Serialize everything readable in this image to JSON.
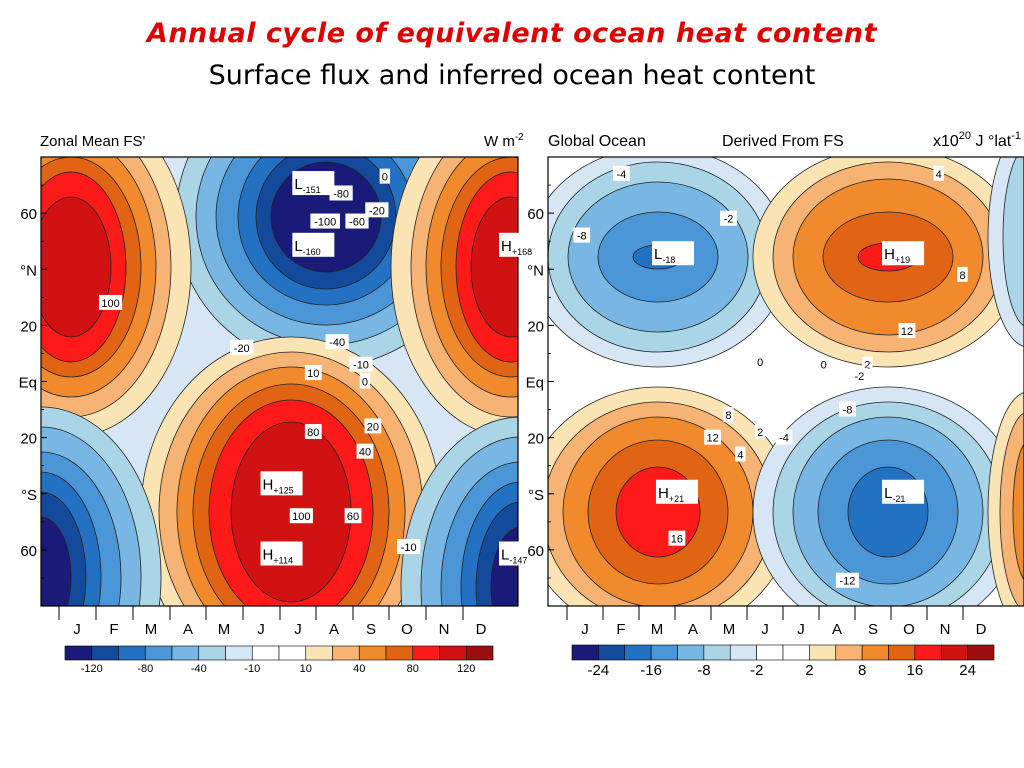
{
  "title": "Annual cycle of equivalent ocean heat content",
  "subtitle": "Surface flux and inferred ocean heat content",
  "chart_data": [
    {
      "type": "heatmap",
      "header_left": "Zonal Mean FS'",
      "header_right": "W m",
      "header_right_sup": "-2",
      "x_ticks": [
        "J",
        "F",
        "M",
        "A",
        "M",
        "J",
        "J",
        "A",
        "S",
        "O",
        "N",
        "D"
      ],
      "y_ticks": [
        "60",
        "°N",
        "20",
        "Eq",
        "20",
        "°S",
        "60"
      ],
      "levels": [
        "-120",
        "-80",
        "-40",
        "-10",
        "10",
        "40",
        "80",
        "120"
      ],
      "colors": [
        "#1a1a78",
        "#144a9c",
        "#2371c3",
        "#4b96d6",
        "#78b6e4",
        "#a9d5e6",
        "#d7e6f5",
        "#ffffff",
        "#ffffff",
        "#fbe4b4",
        "#f6b373",
        "#f08a2c",
        "#e06414",
        "#ff1a1a",
        "#d21212",
        "#9e0e0e"
      ],
      "extrema": [
        {
          "letter": "L",
          "value": "-151",
          "month": 7.1,
          "lat": 70
        },
        {
          "letter": "L",
          "value": "-160",
          "month": 7.1,
          "lat": 48
        },
        {
          "letter": "H",
          "value": "+168",
          "month": 12.3,
          "lat": 48
        },
        {
          "letter": "H",
          "value": "+125",
          "month": 6.3,
          "lat": -37
        },
        {
          "letter": "H",
          "value": "+114",
          "month": 6.3,
          "lat": -62
        },
        {
          "letter": "L",
          "value": "-147",
          "month": 12.3,
          "lat": -62
        }
      ],
      "contour_labels": [
        {
          "text": "-80",
          "month": 8.0,
          "lat": 67
        },
        {
          "text": "0",
          "month": 9.1,
          "lat": 73
        },
        {
          "text": "-20",
          "month": 8.9,
          "lat": 61
        },
        {
          "text": "-100",
          "month": 7.6,
          "lat": 57
        },
        {
          "text": "-60",
          "month": 8.4,
          "lat": 57
        },
        {
          "text": "100",
          "month": 2.2,
          "lat": 28
        },
        {
          "text": "-40",
          "month": 7.9,
          "lat": 14
        },
        {
          "text": "-20",
          "month": 5.5,
          "lat": 12
        },
        {
          "text": "-10",
          "month": 8.5,
          "lat": 6
        },
        {
          "text": "10",
          "month": 7.3,
          "lat": 3
        },
        {
          "text": "0",
          "month": 8.6,
          "lat": 0
        },
        {
          "text": "20",
          "month": 8.8,
          "lat": -16
        },
        {
          "text": "80",
          "month": 7.3,
          "lat": -18
        },
        {
          "text": "40",
          "month": 8.6,
          "lat": -25
        },
        {
          "text": "100",
          "month": 7.0,
          "lat": -48
        },
        {
          "text": "60",
          "month": 8.3,
          "lat": -48
        },
        {
          "text": "-10",
          "month": 9.7,
          "lat": -59
        }
      ]
    },
    {
      "type": "heatmap",
      "header_left": "Global Ocean",
      "header_center": "Derived From FS",
      "header_right": "x10",
      "header_right_sup": "20",
      "header_right_tail": "J °lat",
      "header_right_sup2": "-1",
      "x_ticks": [
        "J",
        "F",
        "M",
        "A",
        "M",
        "J",
        "J",
        "A",
        "S",
        "O",
        "N",
        "D"
      ],
      "y_ticks": [
        "60",
        "°N",
        "20",
        "Eq",
        "20",
        "°S",
        "60"
      ],
      "levels": [
        "-24",
        "-16",
        "-8",
        "-2",
        "2",
        "8",
        "16",
        "24"
      ],
      "colors": [
        "#1a1a78",
        "#144a9c",
        "#2371c3",
        "#4b96d6",
        "#78b6e4",
        "#a9d5e6",
        "#d7e6f5",
        "#ffffff",
        "#ffffff",
        "#fbe4b4",
        "#f6b373",
        "#f08a2c",
        "#e06414",
        "#ff1a1a",
        "#d21212",
        "#9e0e0e"
      ],
      "extrema": [
        {
          "letter": "L",
          "value": "-18",
          "month": 3.4,
          "lat": 45
        },
        {
          "letter": "H",
          "value": "+19",
          "month": 9.2,
          "lat": 45
        },
        {
          "letter": "H",
          "value": "+21",
          "month": 3.5,
          "lat": -40
        },
        {
          "letter": "L",
          "value": "-21",
          "month": 9.2,
          "lat": -40
        }
      ],
      "contour_labels": [
        {
          "text": "-4",
          "month": 2.3,
          "lat": 74
        },
        {
          "text": "4",
          "month": 10.3,
          "lat": 74
        },
        {
          "text": "-8",
          "month": 1.3,
          "lat": 52
        },
        {
          "text": "-2",
          "month": 5.0,
          "lat": 58
        },
        {
          "text": "8",
          "month": 10.9,
          "lat": 38
        },
        {
          "text": "12",
          "month": 9.5,
          "lat": 18
        },
        {
          "text": "0",
          "month": 5.8,
          "lat": 7
        },
        {
          "text": "0",
          "month": 7.4,
          "lat": 6
        },
        {
          "text": "2",
          "month": 8.5,
          "lat": 6
        },
        {
          "text": "-2",
          "month": 8.3,
          "lat": 2
        },
        {
          "text": "-8",
          "month": 8.0,
          "lat": -10
        },
        {
          "text": "8",
          "month": 5.0,
          "lat": -12
        },
        {
          "text": "12",
          "month": 4.6,
          "lat": -20
        },
        {
          "text": "2",
          "month": 5.8,
          "lat": -18
        },
        {
          "text": "-4",
          "month": 6.4,
          "lat": -20
        },
        {
          "text": "4",
          "month": 5.3,
          "lat": -26
        },
        {
          "text": "16",
          "month": 3.7,
          "lat": -56
        },
        {
          "text": "-12",
          "month": 8.0,
          "lat": -71
        }
      ]
    }
  ]
}
